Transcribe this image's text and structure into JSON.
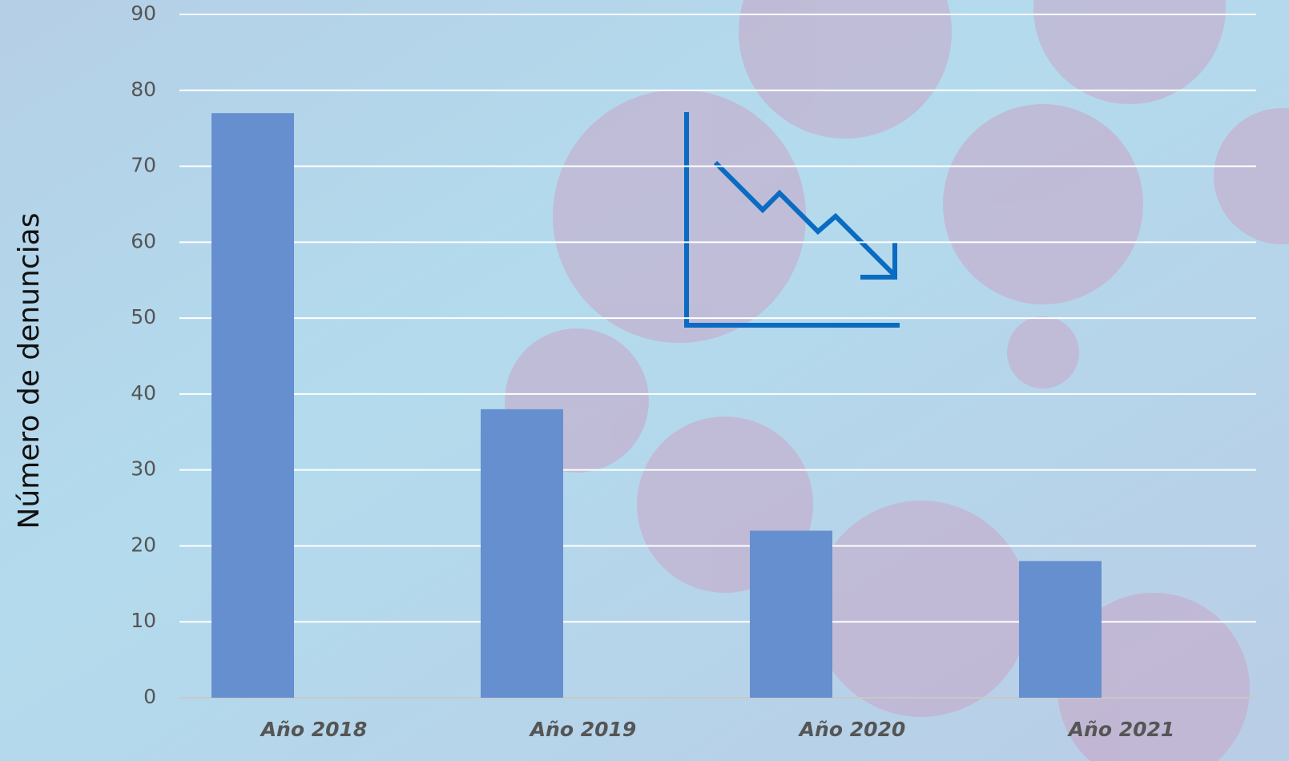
{
  "chart_data": {
    "type": "bar",
    "y_label": "Número de denuncias",
    "categories": [
      "Año 2018",
      "Año 2019",
      "Año 2020",
      "Año 2021"
    ],
    "values": [
      77,
      38,
      22,
      18
    ],
    "color": "#668fcf",
    "ylim": [
      0,
      90
    ],
    "yticks": [
      0,
      10,
      20,
      30,
      40,
      50,
      60,
      70,
      80,
      90
    ],
    "grid": true
  }
}
